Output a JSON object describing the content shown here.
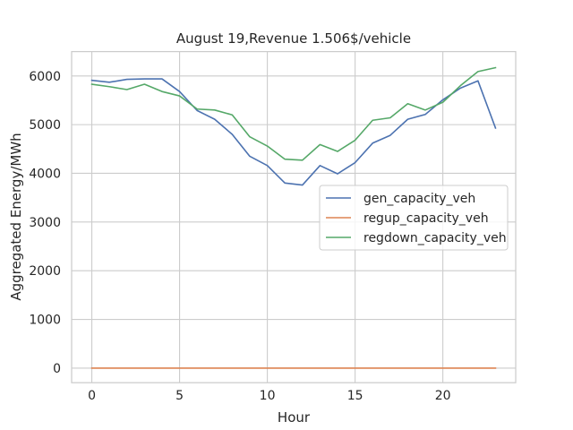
{
  "chart_data": {
    "type": "line",
    "title": "August 19,Revenue 1.506$/vehicle",
    "xlabel": "Hour",
    "ylabel": "Aggregated Energy/MWh",
    "xlim": [
      -1.15,
      24.15
    ],
    "ylim": [
      -300,
      6500
    ],
    "xticks": [
      0,
      5,
      10,
      15,
      20
    ],
    "yticks": [
      0,
      1000,
      2000,
      3000,
      4000,
      5000,
      6000
    ],
    "grid": true,
    "legend_position": "center-right",
    "x": [
      0,
      1,
      2,
      3,
      4,
      5,
      6,
      7,
      8,
      9,
      10,
      11,
      12,
      13,
      14,
      15,
      16,
      17,
      18,
      19,
      20,
      21,
      22,
      23
    ],
    "series": [
      {
        "name": "gen_capacity_veh",
        "color": "#4c72b0",
        "values": [
          5910,
          5870,
          5930,
          5940,
          5940,
          5680,
          5290,
          5110,
          4800,
          4350,
          4160,
          3800,
          3760,
          4160,
          3990,
          4220,
          4620,
          4780,
          5110,
          5210,
          5510,
          5750,
          5900,
          4930
        ]
      },
      {
        "name": "regup_capacity_veh",
        "color": "#dd8452",
        "values": [
          0,
          0,
          0,
          0,
          0,
          0,
          0,
          0,
          0,
          0,
          0,
          0,
          0,
          0,
          0,
          0,
          0,
          0,
          0,
          0,
          0,
          0,
          0,
          0
        ]
      },
      {
        "name": "regdown_capacity_veh",
        "color": "#55a868",
        "values": [
          5830,
          5780,
          5720,
          5830,
          5680,
          5590,
          5320,
          5300,
          5200,
          4750,
          4560,
          4290,
          4270,
          4590,
          4450,
          4680,
          5090,
          5140,
          5430,
          5300,
          5460,
          5800,
          6090,
          6170
        ]
      }
    ]
  }
}
